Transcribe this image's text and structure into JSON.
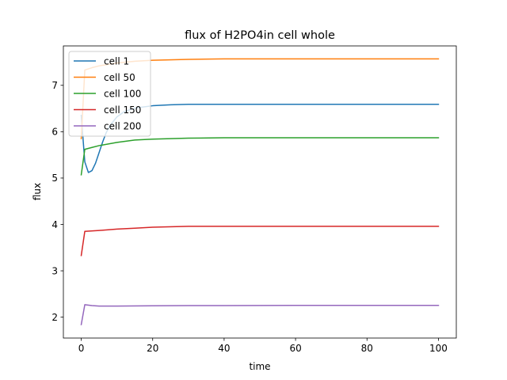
{
  "chart_data": {
    "type": "line",
    "title": "flux of H2PO4in cell whole",
    "xlabel": "time",
    "ylabel": "flux",
    "xlim": [
      -5,
      105
    ],
    "ylim": [
      1.55,
      7.85
    ],
    "x_ticks": [
      0,
      20,
      40,
      60,
      80,
      100
    ],
    "y_ticks": [
      2,
      3,
      4,
      5,
      6,
      7
    ],
    "grid": false,
    "legend_position": "upper-left",
    "series": [
      {
        "name": "cell 1",
        "color": "#1f77b4",
        "points": [
          [
            0,
            6.35
          ],
          [
            1,
            5.35
          ],
          [
            2,
            5.12
          ],
          [
            3,
            5.16
          ],
          [
            4,
            5.32
          ],
          [
            5,
            5.55
          ],
          [
            6,
            5.78
          ],
          [
            7,
            5.98
          ],
          [
            8,
            6.13
          ],
          [
            10,
            6.32
          ],
          [
            12,
            6.43
          ],
          [
            15,
            6.51
          ],
          [
            20,
            6.56
          ],
          [
            25,
            6.58
          ],
          [
            30,
            6.59
          ],
          [
            40,
            6.59
          ],
          [
            60,
            6.59
          ],
          [
            80,
            6.59
          ],
          [
            100,
            6.59
          ]
        ]
      },
      {
        "name": "cell 50",
        "color": "#ff7f0e",
        "points": [
          [
            0,
            5.85
          ],
          [
            1,
            7.33
          ],
          [
            3,
            7.38
          ],
          [
            5,
            7.42
          ],
          [
            10,
            7.48
          ],
          [
            15,
            7.52
          ],
          [
            20,
            7.54
          ],
          [
            30,
            7.56
          ],
          [
            40,
            7.57
          ],
          [
            60,
            7.57
          ],
          [
            80,
            7.57
          ],
          [
            100,
            7.57
          ]
        ]
      },
      {
        "name": "cell 100",
        "color": "#2ca02c",
        "points": [
          [
            0,
            5.07
          ],
          [
            1,
            5.62
          ],
          [
            3,
            5.66
          ],
          [
            5,
            5.7
          ],
          [
            10,
            5.77
          ],
          [
            15,
            5.82
          ],
          [
            20,
            5.84
          ],
          [
            30,
            5.86
          ],
          [
            40,
            5.87
          ],
          [
            60,
            5.87
          ],
          [
            80,
            5.87
          ],
          [
            100,
            5.87
          ]
        ]
      },
      {
        "name": "cell 150",
        "color": "#d62728",
        "points": [
          [
            0,
            3.33
          ],
          [
            1,
            3.85
          ],
          [
            5,
            3.87
          ],
          [
            10,
            3.9
          ],
          [
            15,
            3.92
          ],
          [
            20,
            3.94
          ],
          [
            30,
            3.96
          ],
          [
            40,
            3.96
          ],
          [
            60,
            3.96
          ],
          [
            80,
            3.96
          ],
          [
            100,
            3.96
          ]
        ]
      },
      {
        "name": "cell 200",
        "color": "#9467bd",
        "points": [
          [
            0,
            1.84
          ],
          [
            1,
            2.27
          ],
          [
            3,
            2.25
          ],
          [
            5,
            2.24
          ],
          [
            10,
            2.24
          ],
          [
            20,
            2.245
          ],
          [
            30,
            2.25
          ],
          [
            40,
            2.25
          ],
          [
            60,
            2.255
          ],
          [
            80,
            2.255
          ],
          [
            100,
            2.255
          ]
        ]
      }
    ]
  }
}
